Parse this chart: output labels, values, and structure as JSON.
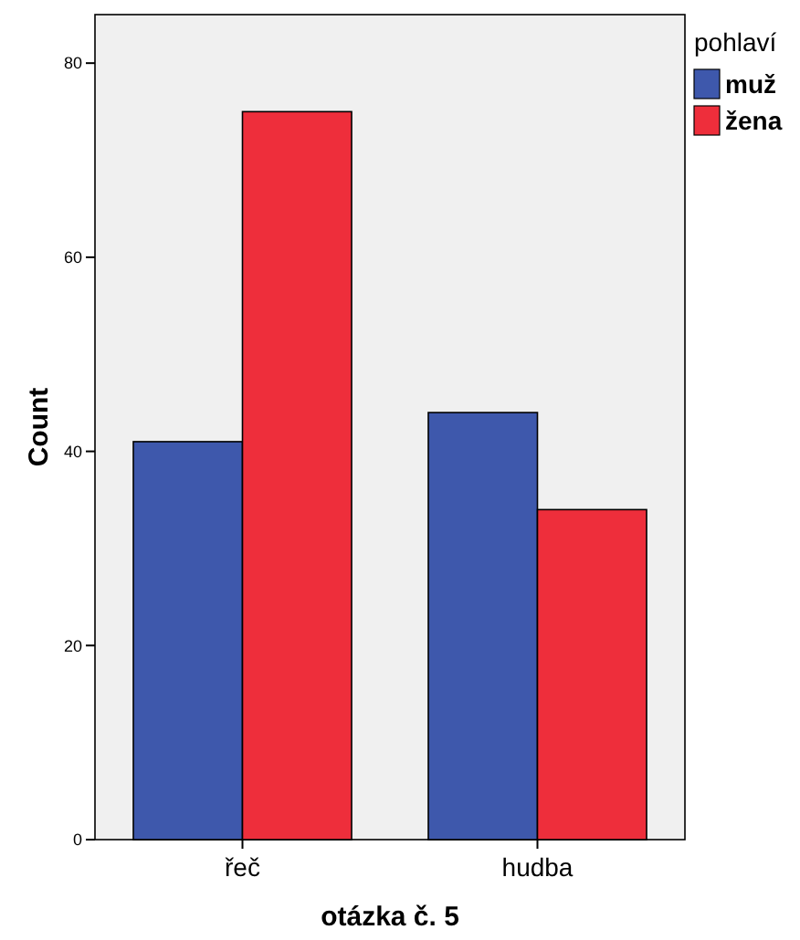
{
  "chart_data": {
    "type": "bar",
    "xlabel": "otázka č. 5",
    "ylabel": "Count",
    "legend_title": "pohlaví",
    "categories": [
      "řeč",
      "hudba"
    ],
    "series": [
      {
        "name": "muž",
        "color": "#3e58ac",
        "values": [
          41,
          44
        ]
      },
      {
        "name": "žena",
        "color": "#ee2e3b",
        "values": [
          75,
          34
        ]
      }
    ],
    "ylim": [
      0,
      85
    ],
    "yticks": [
      0,
      20,
      40,
      60,
      80
    ],
    "grid": false,
    "legend": "right"
  }
}
